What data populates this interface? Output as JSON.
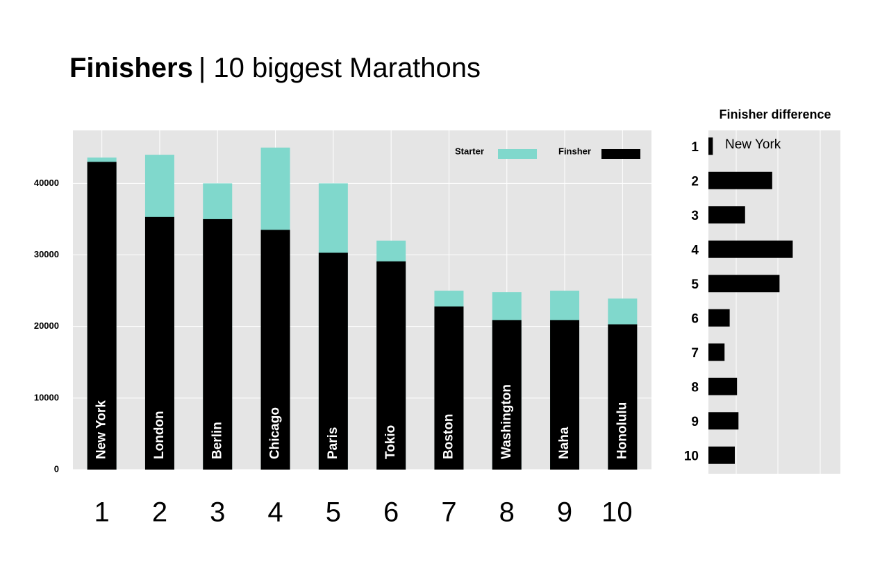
{
  "chart_data": [
    {
      "type": "bar",
      "title": "Finishers",
      "subtitle": "| 10 biggest Marathons",
      "categories": [
        "New York",
        "London",
        "Berlin",
        "Chicago",
        "Paris",
        "Tokio",
        "Boston",
        "Washington",
        "Naha",
        "Honolulu"
      ],
      "ranks": [
        "1",
        "2",
        "3",
        "4",
        "5",
        "6",
        "7",
        "8",
        "9",
        "10"
      ],
      "series": [
        {
          "name": "Starter",
          "color": "#80d8cc",
          "values": [
            43600,
            44000,
            40000,
            45000,
            40000,
            32000,
            25000,
            24800,
            25000,
            23900
          ]
        },
        {
          "name": "Finsher",
          "color": "#000000",
          "values": [
            43000,
            35300,
            35000,
            33500,
            30300,
            29100,
            22800,
            20900,
            20900,
            20300
          ]
        }
      ],
      "ylim": [
        0,
        47400
      ],
      "yticks": [
        0,
        10000,
        20000,
        30000,
        40000
      ],
      "grid": true,
      "legend": "upper right"
    },
    {
      "type": "barh",
      "title": "Finisher difference",
      "categories": [
        "1",
        "2",
        "3",
        "4",
        "5",
        "6",
        "7",
        "8",
        "9",
        "10"
      ],
      "values": [
        600,
        8700,
        5000,
        11500,
        9700,
        2900,
        2200,
        3900,
        4100,
        3600
      ],
      "color": "#000000",
      "xlim": [
        0,
        18000
      ],
      "annotation": "New York"
    }
  ]
}
